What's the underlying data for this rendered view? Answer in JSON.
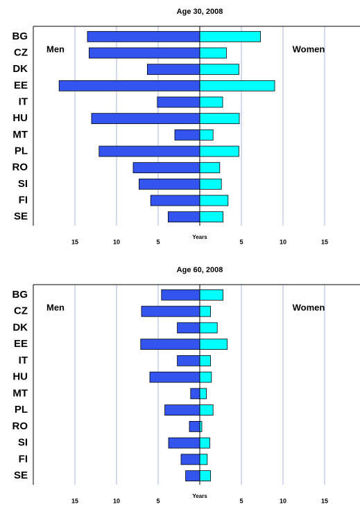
{
  "chart_data": [
    {
      "type": "butterfly-bar",
      "title": "Age 30, 2008",
      "xlabel": "Years",
      "categories": [
        "BG",
        "CZ",
        "DK",
        "EE",
        "IT",
        "HU",
        "MT",
        "PL",
        "RO",
        "SI",
        "FI",
        "SE"
      ],
      "series": [
        {
          "name": "Men",
          "color": "#3355ee",
          "values": [
            -13.5,
            -13.3,
            -6.3,
            -16.9,
            -5.1,
            -13.0,
            -3.0,
            -12.1,
            -8.0,
            -7.3,
            -5.9,
            -3.8
          ]
        },
        {
          "name": "Women",
          "color": "#00ffff",
          "values": [
            7.3,
            3.2,
            4.7,
            9.0,
            2.75,
            4.75,
            1.6,
            4.7,
            2.4,
            2.6,
            3.4,
            2.8
          ]
        }
      ],
      "xlim": [
        -20,
        19.25
      ],
      "xticks": [
        {
          "value": -15,
          "label": "15"
        },
        {
          "value": -10,
          "label": "10"
        },
        {
          "value": -5,
          "label": "5"
        },
        5,
        10,
        15
      ],
      "grid": true
    },
    {
      "type": "butterfly-bar",
      "title": "Age 60, 2008",
      "xlabel": "Years",
      "categories": [
        "BG",
        "CZ",
        "DK",
        "EE",
        "IT",
        "HU",
        "MT",
        "PL",
        "RO",
        "SI",
        "FI",
        "SE"
      ],
      "series": [
        {
          "name": "Men",
          "color": "#3355ee",
          "values": [
            -4.6,
            -7.0,
            -2.7,
            -7.1,
            -2.7,
            -6.0,
            -1.1,
            -4.2,
            -1.25,
            -3.75,
            -2.25,
            -1.7
          ]
        },
        {
          "name": "Women",
          "color": "#00ffff",
          "values": [
            2.8,
            1.3,
            2.1,
            3.3,
            1.3,
            1.4,
            0.8,
            1.6,
            0.25,
            1.2,
            0.9,
            1.3
          ]
        }
      ],
      "xlim": [
        -20,
        19.25
      ],
      "xticks": [
        {
          "value": -15,
          "label": "15"
        },
        {
          "value": -10,
          "label": "10"
        },
        {
          "value": -5,
          "label": "5"
        },
        5,
        10,
        15
      ],
      "grid": true
    }
  ]
}
